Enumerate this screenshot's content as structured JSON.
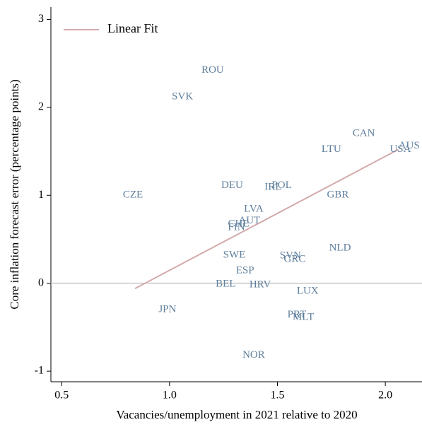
{
  "chart_data": {
    "type": "scatter",
    "xlabel": "Vacancies/unemployment in 2021 relative to 2020",
    "ylabel": "Core inflation forecast error (percentage points)",
    "xlim": [
      0.45,
      2.17
    ],
    "ylim": [
      -1.12,
      3.14
    ],
    "xticks": [
      0.5,
      {
        "value": 1,
        "label": "1.0"
      },
      1.5,
      {
        "value": 2,
        "label": "2.0"
      }
    ],
    "yticks": [
      -1,
      0,
      1,
      2,
      3
    ],
    "reference_line": {
      "y": 0,
      "color": "#c8c8c8"
    },
    "label_color": "#5f7f9c",
    "points": {
      "labels": [
        "ROU",
        "SVK",
        "CZE",
        "DEU",
        "IRL",
        "POL",
        "CAN",
        "LTU",
        "USA",
        "AUS",
        "GBR",
        "LVA",
        "AUT",
        "CHE",
        "FIN",
        "NLD",
        "SWE",
        "SVN",
        "GRC",
        "ESP",
        "BEL",
        "HRV",
        "LUX",
        "JPN",
        "PRT",
        "MLT",
        "NOR"
      ],
      "x": [
        1.2,
        1.06,
        0.83,
        1.29,
        1.48,
        1.52,
        1.9,
        1.75,
        2.07,
        2.11,
        1.78,
        1.39,
        1.37,
        1.32,
        1.31,
        1.79,
        1.3,
        1.56,
        1.58,
        1.35,
        1.26,
        1.42,
        1.64,
        0.99,
        1.59,
        1.62,
        1.39
      ],
      "values": [
        2.42,
        2.12,
        1.0,
        1.11,
        1.09,
        1.11,
        1.7,
        1.52,
        1.52,
        1.56,
        1.0,
        0.84,
        0.71,
        0.67,
        0.63,
        0.4,
        0.32,
        0.31,
        0.27,
        0.14,
        -0.01,
        -0.02,
        -0.09,
        -0.3,
        -0.36,
        -0.39,
        -0.82
      ]
    },
    "series": [
      {
        "name": "Linear Fit",
        "color": "#d4aaab",
        "x": [
          0.84,
          2.06
        ],
        "values": [
          -0.06,
          1.52
        ]
      }
    ],
    "legend": "upper left"
  }
}
